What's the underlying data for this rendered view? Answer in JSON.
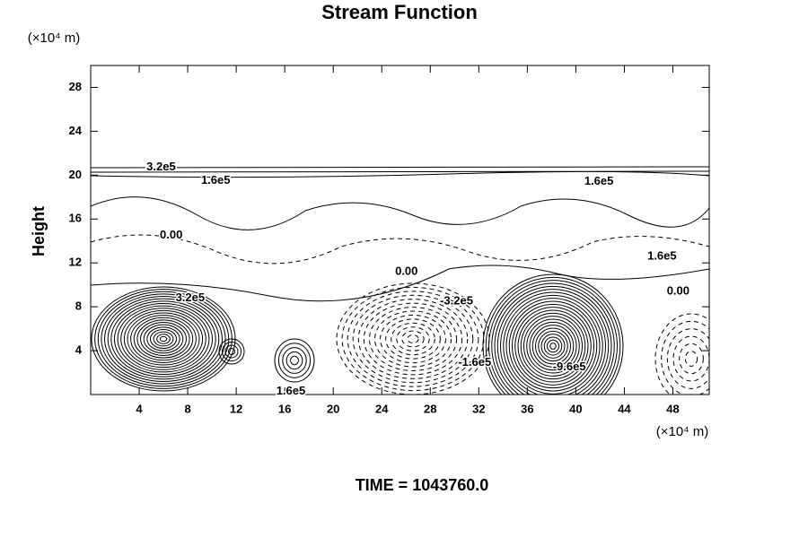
{
  "chart_data": {
    "type": "contour",
    "title": "Stream Function",
    "x_unit": "(×10⁴ m)",
    "y_unit": "(×10⁴ m)",
    "ylabel": "Height",
    "footer": "TIME = 1043760.0",
    "xlim": [
      0,
      51
    ],
    "ylim": [
      0,
      30
    ],
    "xticks": [
      4,
      8,
      12,
      16,
      20,
      24,
      28,
      32,
      36,
      40,
      44,
      48
    ],
    "yticks": [
      4,
      8,
      12,
      16,
      20,
      24,
      28
    ],
    "contour_labels": [
      {
        "text": "3.2e5",
        "x": 4.6,
        "y": 20.7
      },
      {
        "text": "1.6e5",
        "x": 9.1,
        "y": 19.5
      },
      {
        "text": "0.00",
        "x": 5.7,
        "y": 14.5
      },
      {
        "text": "1.6e5",
        "x": 40.7,
        "y": 19.4
      },
      {
        "text": "1.6e5",
        "x": 45.9,
        "y": 12.6
      },
      {
        "text": "0.00",
        "x": 25.1,
        "y": 11.2
      },
      {
        "text": "0.00",
        "x": 47.5,
        "y": 9.4
      },
      {
        "text": "3.2e5",
        "x": 7.0,
        "y": 8.8
      },
      {
        "text": "-3.2e5",
        "x": 28.8,
        "y": 8.5
      },
      {
        "text": "-1.6e5",
        "x": 30.3,
        "y": 2.9
      },
      {
        "text": "-9.6e5",
        "x": 38.1,
        "y": 2.5
      },
      {
        "text": "1.6e5",
        "x": 15.3,
        "y": 0.3
      }
    ]
  }
}
